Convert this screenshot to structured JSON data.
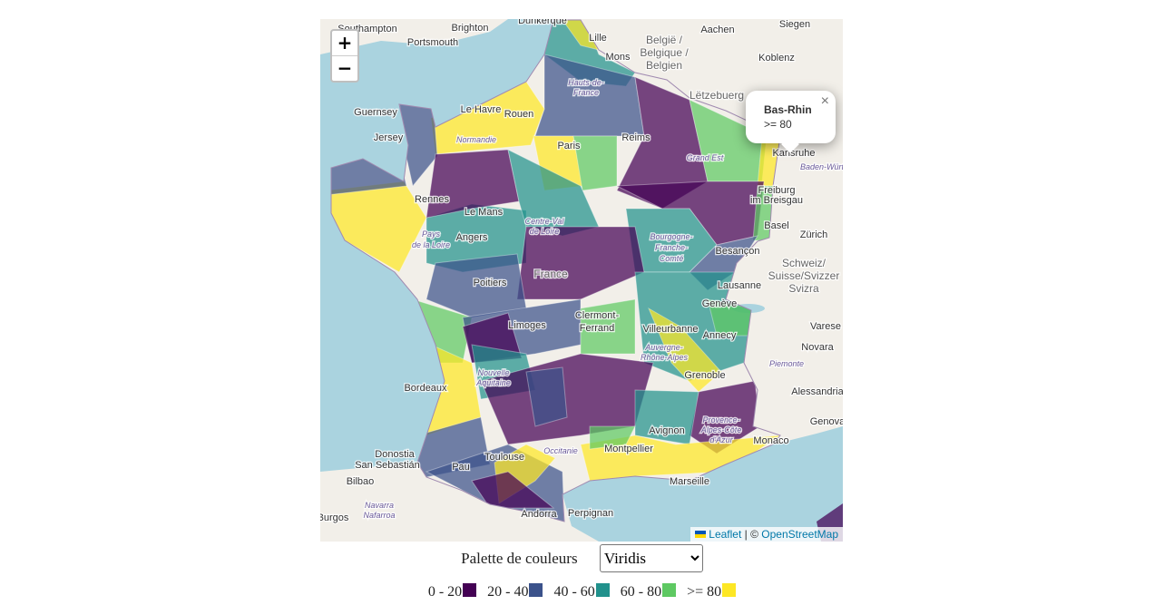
{
  "map": {
    "zoom_in": "+",
    "zoom_out": "−",
    "popup": {
      "title": "Bas-Rhin",
      "text": ">= 80",
      "close": "×"
    },
    "attribution": {
      "leaflet": "Leaflet",
      "separator": "| ©",
      "osm": "OpenStreetMap"
    },
    "place_labels": [
      "Dunkerque",
      "Southampton",
      "Brighton",
      "Portsmouth",
      "Lille",
      "Mons",
      "België /",
      "Belgique /",
      "Belgien",
      "Aachen",
      "Siegen",
      "Koblenz",
      "Lëtzebuerg",
      "Guernsey",
      "Jersey",
      "Le Havre",
      "Rouen",
      "Normandie",
      "Hauts-de-",
      "France",
      "Paris",
      "Reims",
      "Grand Est",
      "Karlsruhe",
      "Baden-Würt",
      "Freiburg",
      "im Breisgau",
      "Rennes",
      "Le Mans",
      "Centre-Val",
      "de Loire",
      "Pays",
      "de la Loire",
      "Angers",
      "Bourgogne-",
      "Franche-",
      "Comté",
      "Basel",
      "Zürich",
      "Besançon",
      "Schweiz/",
      "Suisse/Svizzer",
      "Svizra",
      "France",
      "Poitiers",
      "Lausanne",
      "Genève",
      "Limoges",
      "Clermont-",
      "Ferrand",
      "Villeurbanne",
      "Annecy",
      "Varese",
      "Auvergne-",
      "Rhône-Alpes",
      "Novara",
      "Piemonte",
      "Nouvelle",
      "Aquitaine",
      "Grenoble",
      "Bordeaux",
      "Alessandria",
      "Provence-",
      "Alpes-Côte",
      "d'Azur",
      "Genova",
      "Avignon",
      "Monaco",
      "Donostia",
      "Toulouse",
      "Montpellier",
      "Occitanie",
      "San Sebastián",
      "Pau",
      "Marseille",
      "Bilbao",
      "Navarra",
      "Nafarroa",
      "Andorra",
      "Perpignan",
      "Burgos"
    ]
  },
  "controls": {
    "palette_label": "Palette de couleurs",
    "palette_options": [
      "Viridis"
    ]
  },
  "legend": {
    "items": [
      {
        "label": "0 - 20",
        "color": "#440154"
      },
      {
        "label": "20 - 40",
        "color": "#3b528b"
      },
      {
        "label": "40 - 60",
        "color": "#21918c"
      },
      {
        "label": "60 - 80",
        "color": "#5ec962"
      },
      {
        "label": ">= 80",
        "color": "#fde725"
      }
    ]
  }
}
